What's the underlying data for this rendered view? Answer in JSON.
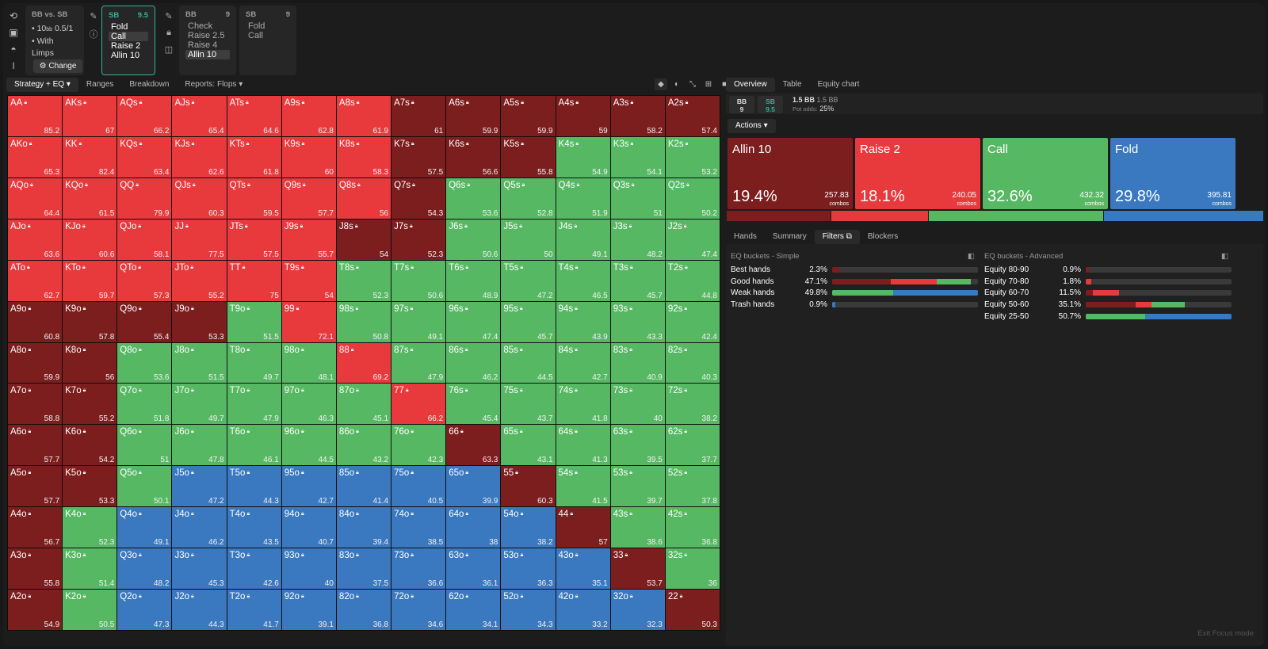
{
  "top": {
    "bb_vs_sb": "BB vs. SB",
    "stack_label": "10",
    "stack_unit": "bb",
    "blinds": "0.5/1",
    "limps": "With Limps",
    "change": "Change"
  },
  "nodes": [
    {
      "player": "SB",
      "stack": "9.5",
      "actions": [
        "Fold",
        "Call",
        "Raise 2",
        "Allin 10"
      ],
      "selected": "Call"
    },
    {
      "player": "BB",
      "stack": "9",
      "actions": [
        "Check",
        "Raise 2.5",
        "Raise 4",
        "Allin 10"
      ],
      "selected": "Allin 10"
    },
    {
      "player": "SB",
      "stack": "9",
      "actions": [
        "Fold",
        "Call"
      ],
      "selected": ""
    }
  ],
  "left_tabs": [
    "Strategy + EQ",
    "Ranges",
    "Breakdown",
    "Reports: Flops"
  ],
  "right_tabs": [
    "Overview",
    "Table",
    "Equity chart"
  ],
  "pot": {
    "bb_label": "BB",
    "bb_stack": "9",
    "sb_label": "SB",
    "sb_stack": "9.5",
    "pot": "1.5 BB",
    "pot2": "1.5 BB",
    "odds_label": "Pot odds:",
    "odds": "25%"
  },
  "actions_label": "Actions",
  "actions": [
    {
      "name": "Allin 10",
      "pct": "19.4%",
      "combos": "257.83",
      "color": "#7c1d1e"
    },
    {
      "name": "Raise 2",
      "pct": "18.1%",
      "combos": "240.05",
      "color": "#e8393d"
    },
    {
      "name": "Call",
      "pct": "32.6%",
      "combos": "432.32",
      "color": "#57b864"
    },
    {
      "name": "Fold",
      "pct": "29.8%",
      "combos": "395.81",
      "color": "#3a78bf"
    }
  ],
  "combos_word": "combos",
  "sub_tabs": [
    "Hands",
    "Summary",
    "Filters",
    "Blockers"
  ],
  "simple": {
    "title": "EQ buckets - Simple",
    "rows": [
      {
        "label": "Best hands",
        "pct": "2.3%",
        "fill": [
          [
            0,
            0.05
          ],
          [
            1,
            0
          ],
          [
            2,
            0
          ],
          [
            3,
            0
          ]
        ]
      },
      {
        "label": "Good hands",
        "pct": "47.1%",
        "fill": [
          [
            0,
            0.4
          ],
          [
            1,
            0.32
          ],
          [
            2,
            0.23
          ],
          [
            3,
            0
          ]
        ]
      },
      {
        "label": "Weak hands",
        "pct": "49.8%",
        "fill": [
          [
            0,
            0
          ],
          [
            1,
            0
          ],
          [
            2,
            0.42
          ],
          [
            3,
            0.58
          ]
        ]
      },
      {
        "label": "Trash hands",
        "pct": "0.9%",
        "fill": [
          [
            0,
            0
          ],
          [
            1,
            0
          ],
          [
            2,
            0
          ],
          [
            3,
            0.02
          ]
        ]
      }
    ]
  },
  "advanced": {
    "title": "EQ buckets - Advanced",
    "rows": [
      {
        "label": "Equity 80-90",
        "pct": "0.9%",
        "fill": [
          [
            0,
            0.02
          ],
          [
            1,
            0
          ],
          [
            2,
            0
          ],
          [
            3,
            0
          ]
        ]
      },
      {
        "label": "Equity 70-80",
        "pct": "1.8%",
        "fill": [
          [
            0,
            0
          ],
          [
            1,
            0.04
          ],
          [
            2,
            0
          ],
          [
            3,
            0
          ]
        ]
      },
      {
        "label": "Equity 60-70",
        "pct": "11.5%",
        "fill": [
          [
            0,
            0.05
          ],
          [
            1,
            0.18
          ],
          [
            2,
            0
          ],
          [
            3,
            0
          ]
        ]
      },
      {
        "label": "Equity 50-60",
        "pct": "35.1%",
        "fill": [
          [
            0,
            0.34
          ],
          [
            1,
            0.11
          ],
          [
            2,
            0.23
          ],
          [
            3,
            0
          ]
        ]
      },
      {
        "label": "Equity 25-50",
        "pct": "50.7%",
        "fill": [
          [
            0,
            0
          ],
          [
            1,
            0
          ],
          [
            2,
            0.41
          ],
          [
            3,
            0.59
          ]
        ]
      }
    ]
  },
  "exit": "Exit Focus mode",
  "grid": [
    [
      [
        "AA",
        "85.2",
        "r"
      ],
      [
        "AKs",
        "67",
        "r"
      ],
      [
        "AQs",
        "66.2",
        "r"
      ],
      [
        "AJs",
        "65.4",
        "r"
      ],
      [
        "ATs",
        "64.6",
        "r"
      ],
      [
        "A9s",
        "62.8",
        "r"
      ],
      [
        "A8s",
        "61.9",
        "r"
      ],
      [
        "A7s",
        "61",
        "a"
      ],
      [
        "A6s",
        "59.9",
        "a"
      ],
      [
        "A5s",
        "59.9",
        "a"
      ],
      [
        "A4s",
        "59",
        "a"
      ],
      [
        "A3s",
        "58.2",
        "a"
      ],
      [
        "A2s",
        "57.4",
        "a"
      ]
    ],
    [
      [
        "AKo",
        "65.3",
        "r"
      ],
      [
        "KK",
        "82.4",
        "r"
      ],
      [
        "KQs",
        "63.4",
        "r"
      ],
      [
        "KJs",
        "62.6",
        "r"
      ],
      [
        "KTs",
        "61.8",
        "r"
      ],
      [
        "K9s",
        "60",
        "r"
      ],
      [
        "K8s",
        "58.3",
        "r"
      ],
      [
        "K7s",
        "57.5",
        "a"
      ],
      [
        "K6s",
        "56.6",
        "a"
      ],
      [
        "K5s",
        "55.8",
        "a"
      ],
      [
        "K4s",
        "54.9",
        "c"
      ],
      [
        "K3s",
        "54.1",
        "c"
      ],
      [
        "K2s",
        "53.2",
        "c"
      ]
    ],
    [
      [
        "AQo",
        "64.4",
        "r"
      ],
      [
        "KQo",
        "61.5",
        "r"
      ],
      [
        "QQ",
        "79.9",
        "r"
      ],
      [
        "QJs",
        "60.3",
        "r"
      ],
      [
        "QTs",
        "59.5",
        "r"
      ],
      [
        "Q9s",
        "57.7",
        "r"
      ],
      [
        "Q8s",
        "56",
        "r"
      ],
      [
        "Q7s",
        "54.3",
        "a"
      ],
      [
        "Q6s",
        "53.6",
        "c"
      ],
      [
        "Q5s",
        "52.8",
        "c"
      ],
      [
        "Q4s",
        "51.9",
        "c"
      ],
      [
        "Q3s",
        "51",
        "c"
      ],
      [
        "Q2s",
        "50.2",
        "c"
      ]
    ],
    [
      [
        "AJo",
        "63.6",
        "r"
      ],
      [
        "KJo",
        "60.6",
        "r"
      ],
      [
        "QJo",
        "58.1",
        "r"
      ],
      [
        "JJ",
        "77.5",
        "r"
      ],
      [
        "JTs",
        "57.5",
        "r"
      ],
      [
        "J9s",
        "55.7",
        "r"
      ],
      [
        "J8s",
        "54",
        "a"
      ],
      [
        "J7s",
        "52.3",
        "a"
      ],
      [
        "J6s",
        "50.6",
        "c"
      ],
      [
        "J5s",
        "50",
        "c"
      ],
      [
        "J4s",
        "49.1",
        "c"
      ],
      [
        "J3s",
        "48.2",
        "c"
      ],
      [
        "J2s",
        "47.4",
        "c"
      ]
    ],
    [
      [
        "ATo",
        "62.7",
        "r"
      ],
      [
        "KTo",
        "59.7",
        "r"
      ],
      [
        "QTo",
        "57.3",
        "r"
      ],
      [
        "JTo",
        "55.2",
        "r"
      ],
      [
        "TT",
        "75",
        "r"
      ],
      [
        "T9s",
        "54",
        "r"
      ],
      [
        "T8s",
        "52.3",
        "c"
      ],
      [
        "T7s",
        "50.6",
        "c"
      ],
      [
        "T6s",
        "48.9",
        "c"
      ],
      [
        "T5s",
        "47.2",
        "c"
      ],
      [
        "T4s",
        "46.5",
        "c"
      ],
      [
        "T3s",
        "45.7",
        "c"
      ],
      [
        "T2s",
        "44.8",
        "c"
      ]
    ],
    [
      [
        "A9o",
        "60.8",
        "a"
      ],
      [
        "K9o",
        "57.8",
        "a"
      ],
      [
        "Q9o",
        "55.4",
        "a"
      ],
      [
        "J9o",
        "53.3",
        "a"
      ],
      [
        "T9o",
        "51.5",
        "c"
      ],
      [
        "99",
        "72.1",
        "r"
      ],
      [
        "98s",
        "50.8",
        "c"
      ],
      [
        "97s",
        "49.1",
        "c"
      ],
      [
        "96s",
        "47.4",
        "c"
      ],
      [
        "95s",
        "45.7",
        "c"
      ],
      [
        "94s",
        "43.9",
        "c"
      ],
      [
        "93s",
        "43.3",
        "c"
      ],
      [
        "92s",
        "42.4",
        "c"
      ]
    ],
    [
      [
        "A8o",
        "59.9",
        "a"
      ],
      [
        "K8o",
        "56",
        "a"
      ],
      [
        "Q8o",
        "53.6",
        "c"
      ],
      [
        "J8o",
        "51.5",
        "c"
      ],
      [
        "T8o",
        "49.7",
        "c"
      ],
      [
        "98o",
        "48.1",
        "c"
      ],
      [
        "88",
        "69.2",
        "r"
      ],
      [
        "87s",
        "47.9",
        "c"
      ],
      [
        "86s",
        "46.2",
        "c"
      ],
      [
        "85s",
        "44.5",
        "c"
      ],
      [
        "84s",
        "42.7",
        "c"
      ],
      [
        "83s",
        "40.9",
        "c"
      ],
      [
        "82s",
        "40.3",
        "c"
      ]
    ],
    [
      [
        "A7o",
        "58.8",
        "a"
      ],
      [
        "K7o",
        "55.2",
        "a"
      ],
      [
        "Q7o",
        "51.8",
        "c"
      ],
      [
        "J7o",
        "49.7",
        "c"
      ],
      [
        "T7o",
        "47.9",
        "c"
      ],
      [
        "97o",
        "46.3",
        "c"
      ],
      [
        "87o",
        "45.1",
        "c"
      ],
      [
        "77",
        "66.2",
        "r"
      ],
      [
        "76s",
        "45.4",
        "c"
      ],
      [
        "75s",
        "43.7",
        "c"
      ],
      [
        "74s",
        "41.8",
        "c"
      ],
      [
        "73s",
        "40",
        "c"
      ],
      [
        "72s",
        "38.2",
        "c"
      ]
    ],
    [
      [
        "A6o",
        "57.7",
        "a"
      ],
      [
        "K6o",
        "54.2",
        "a"
      ],
      [
        "Q6o",
        "51",
        "c"
      ],
      [
        "J6o",
        "47.8",
        "c"
      ],
      [
        "T6o",
        "46.1",
        "c"
      ],
      [
        "96o",
        "44.5",
        "c"
      ],
      [
        "86o",
        "43.2",
        "c"
      ],
      [
        "76o",
        "42.3",
        "c"
      ],
      [
        "66",
        "63.3",
        "a"
      ],
      [
        "65s",
        "43.1",
        "c"
      ],
      [
        "64s",
        "41.3",
        "c"
      ],
      [
        "63s",
        "39.5",
        "c"
      ],
      [
        "62s",
        "37.7",
        "c"
      ]
    ],
    [
      [
        "A5o",
        "57.7",
        "a"
      ],
      [
        "K5o",
        "53.3",
        "a"
      ],
      [
        "Q5o",
        "50.1",
        "c"
      ],
      [
        "J5o",
        "47.2",
        "f"
      ],
      [
        "T5o",
        "44.3",
        "f"
      ],
      [
        "95o",
        "42.7",
        "f"
      ],
      [
        "85o",
        "41.4",
        "f"
      ],
      [
        "75o",
        "40.5",
        "f"
      ],
      [
        "65o",
        "39.9",
        "f"
      ],
      [
        "55",
        "60.3",
        "a"
      ],
      [
        "54s",
        "41.5",
        "c"
      ],
      [
        "53s",
        "39.7",
        "c"
      ],
      [
        "52s",
        "37.8",
        "c"
      ]
    ],
    [
      [
        "A4o",
        "56.7",
        "a"
      ],
      [
        "K4o",
        "52.3",
        "c"
      ],
      [
        "Q4o",
        "49.1",
        "f"
      ],
      [
        "J4o",
        "46.2",
        "f"
      ],
      [
        "T4o",
        "43.5",
        "f"
      ],
      [
        "94o",
        "40.7",
        "f"
      ],
      [
        "84o",
        "39.4",
        "f"
      ],
      [
        "74o",
        "38.5",
        "f"
      ],
      [
        "64o",
        "38",
        "f"
      ],
      [
        "54o",
        "38.2",
        "f"
      ],
      [
        "44",
        "57",
        "a"
      ],
      [
        "43s",
        "38.6",
        "c"
      ],
      [
        "42s",
        "36.8",
        "c"
      ]
    ],
    [
      [
        "A3o",
        "55.8",
        "a"
      ],
      [
        "K3o",
        "51.4",
        "c"
      ],
      [
        "Q3o",
        "48.2",
        "f"
      ],
      [
        "J3o",
        "45.3",
        "f"
      ],
      [
        "T3o",
        "42.6",
        "f"
      ],
      [
        "93o",
        "40",
        "f"
      ],
      [
        "83o",
        "37.5",
        "f"
      ],
      [
        "73o",
        "36.6",
        "f"
      ],
      [
        "63o",
        "36.1",
        "f"
      ],
      [
        "53o",
        "36.3",
        "f"
      ],
      [
        "43o",
        "35.1",
        "f"
      ],
      [
        "33",
        "53.7",
        "a"
      ],
      [
        "32s",
        "36",
        "c"
      ]
    ],
    [
      [
        "A2o",
        "54.9",
        "a"
      ],
      [
        "K2o",
        "50.5",
        "c"
      ],
      [
        "Q2o",
        "47.3",
        "f"
      ],
      [
        "J2o",
        "44.3",
        "f"
      ],
      [
        "T2o",
        "41.7",
        "f"
      ],
      [
        "92o",
        "39.1",
        "f"
      ],
      [
        "82o",
        "36.8",
        "f"
      ],
      [
        "72o",
        "34.6",
        "f"
      ],
      [
        "62o",
        "34.1",
        "f"
      ],
      [
        "52o",
        "34.3",
        "f"
      ],
      [
        "42o",
        "33.2",
        "f"
      ],
      [
        "32o",
        "32.3",
        "f"
      ],
      [
        "22",
        "50.3",
        "a"
      ]
    ]
  ]
}
